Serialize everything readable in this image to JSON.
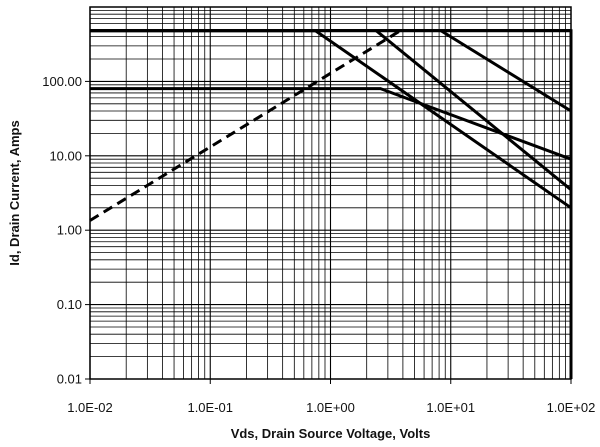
{
  "chart_data": {
    "type": "line",
    "title": "",
    "xlabel": "Vds, Drain Source Voltage, Volts",
    "ylabel": "Id, Drain Current, Amps",
    "x_scale": "log",
    "y_scale": "log",
    "xlim": [
      0.01,
      100
    ],
    "ylim": [
      0.01,
      1000
    ],
    "grid": true,
    "legend": "none",
    "x_ticks": [
      {
        "value": 0.01,
        "label": "1.0E-02"
      },
      {
        "value": 0.1,
        "label": "1.0E-01"
      },
      {
        "value": 1,
        "label": "1.0E+00"
      },
      {
        "value": 10,
        "label": "1.0E+01"
      },
      {
        "value": 100,
        "label": "1.0E+02"
      }
    ],
    "y_ticks": [
      {
        "value": 0.01,
        "label": "0.01"
      },
      {
        "value": 0.1,
        "label": "0.10"
      },
      {
        "value": 1,
        "label": "1.00"
      },
      {
        "value": 10,
        "label": "10.00"
      },
      {
        "value": 100,
        "label": "100.00"
      }
    ],
    "series": [
      {
        "style": "solid",
        "points": [
          [
            0.01,
            480
          ],
          [
            0.75,
            480
          ],
          [
            100,
            2.0
          ]
        ]
      },
      {
        "style": "solid",
        "points": [
          [
            2.4,
            480
          ],
          [
            100,
            3.5
          ]
        ]
      },
      {
        "style": "solid",
        "points": [
          [
            0.01,
            80
          ],
          [
            2.6,
            80
          ],
          [
            100,
            9.0
          ]
        ]
      },
      {
        "style": "solid",
        "points": [
          [
            8.3,
            480
          ],
          [
            100,
            40
          ]
        ]
      },
      {
        "style": "solid",
        "points": [
          [
            0.01,
            480
          ],
          [
            100,
            480
          ],
          [
            100,
            0.01
          ]
        ]
      },
      {
        "style": "dashed",
        "points": [
          [
            0.01,
            1.35
          ],
          [
            3.8,
            480
          ]
        ]
      }
    ]
  }
}
